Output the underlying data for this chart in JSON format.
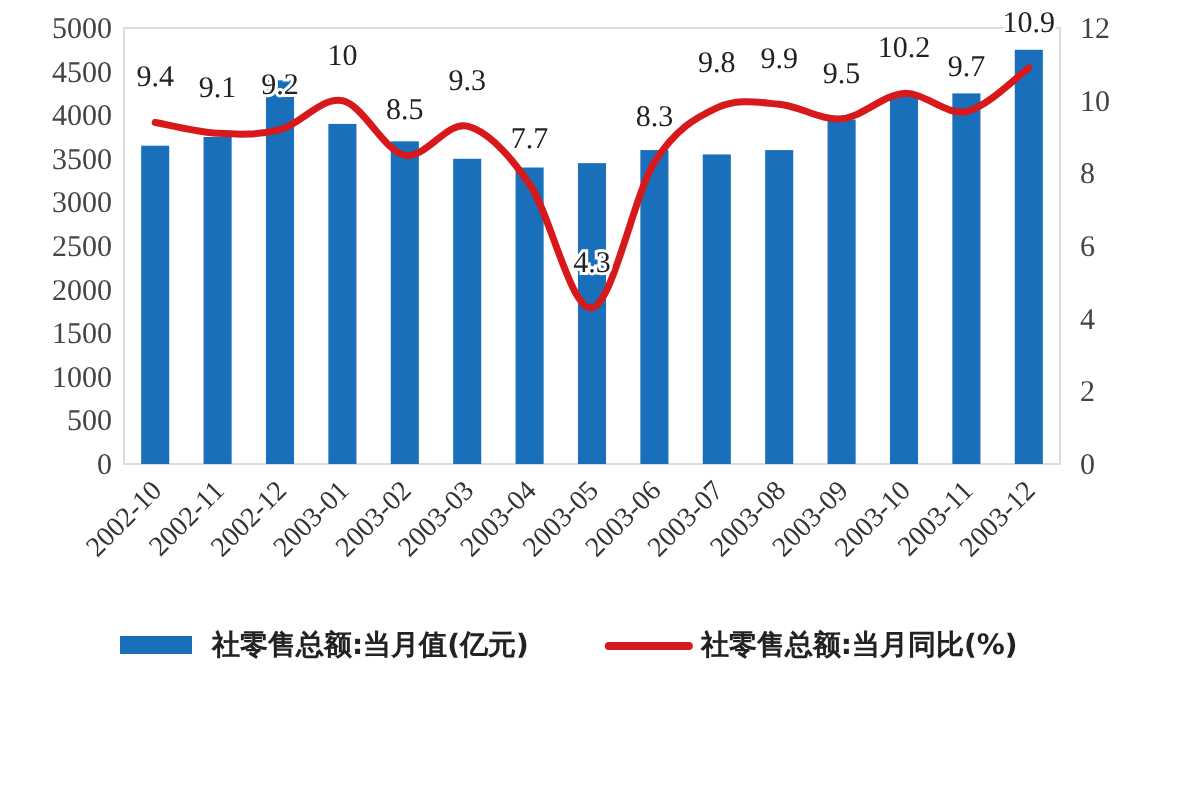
{
  "chart_data": {
    "type": "bar",
    "categories": [
      "2002-10",
      "2002-11",
      "2002-12",
      "2003-01",
      "2003-02",
      "2003-03",
      "2003-04",
      "2003-05",
      "2003-06",
      "2003-07",
      "2003-08",
      "2003-09",
      "2003-10",
      "2003-11",
      "2003-12"
    ],
    "series": [
      {
        "name": "社零售总额:当月值(亿元)",
        "color": "#1a6fba",
        "values": [
          3650,
          3750,
          4400,
          3900,
          3700,
          3500,
          3400,
          3450,
          3600,
          3550,
          3600,
          3950,
          4250,
          4250,
          4750
        ]
      },
      {
        "name": "社零售总额:当月同比(%)",
        "type": "line",
        "axis": "y2",
        "color": "#d7191c",
        "values": [
          9.4,
          9.1,
          9.2,
          10,
          8.5,
          9.3,
          7.7,
          4.3,
          8.3,
          9.8,
          9.9,
          9.5,
          10.2,
          9.7,
          10.9
        ],
        "value_labels": [
          "9.4",
          "9.1",
          "9.2",
          "10",
          "8.5",
          "9.3",
          "7.7",
          "4.3",
          "8.3",
          "9.8",
          "9.9",
          "9.5",
          "10.2",
          "9.7",
          "10.9"
        ]
      }
    ],
    "ylim": [
      0,
      5000
    ],
    "yticks": [
      0,
      500,
      1000,
      1500,
      2000,
      2500,
      3000,
      3500,
      4000,
      4500,
      5000
    ],
    "y2lim": [
      0,
      12
    ],
    "y2ticks": [
      0,
      2,
      4,
      6,
      8,
      10,
      12
    ],
    "grid": false,
    "legend": "bottom"
  }
}
